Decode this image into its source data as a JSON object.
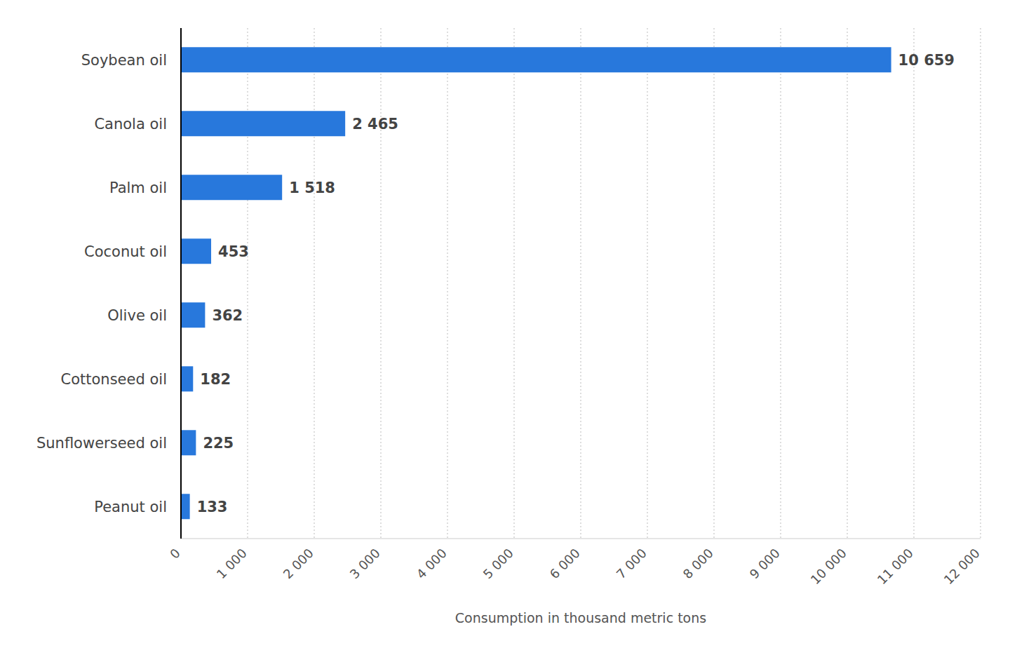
{
  "chart_data": {
    "type": "bar",
    "orientation": "horizontal",
    "x_label": "Consumption in thousand metric tons",
    "categories": [
      "Soybean oil",
      "Canola oil",
      "Palm oil",
      "Coconut oil",
      "Olive oil",
      "Cottonseed oil",
      "Sunflowerseed oil",
      "Peanut oil"
    ],
    "values": [
      10659,
      2465,
      1518,
      453,
      362,
      182,
      225,
      133
    ],
    "value_labels": [
      "10 659",
      "2 465",
      "1 518",
      "453",
      "362",
      "182",
      "225",
      "133"
    ],
    "color": "#2878dc",
    "xlim": [
      0,
      12000
    ],
    "xticks": [
      0,
      {
        "value": 1000,
        "label": "1 000"
      },
      {
        "value": 2000,
        "label": "2 000"
      },
      {
        "value": 3000,
        "label": "3 000"
      },
      {
        "value": 4000,
        "label": "4 000"
      },
      {
        "value": 5000,
        "label": "5 000"
      },
      {
        "value": 6000,
        "label": "6 000"
      },
      {
        "value": 7000,
        "label": "7 000"
      },
      {
        "value": 8000,
        "label": "8 000"
      },
      {
        "value": 9000,
        "label": "9 000"
      },
      {
        "value": 10000,
        "label": "10 000"
      },
      {
        "value": 11000,
        "label": "11 000"
      },
      {
        "value": 12000,
        "label": "12 000"
      }
    ],
    "grid": true,
    "data_labels": true
  }
}
